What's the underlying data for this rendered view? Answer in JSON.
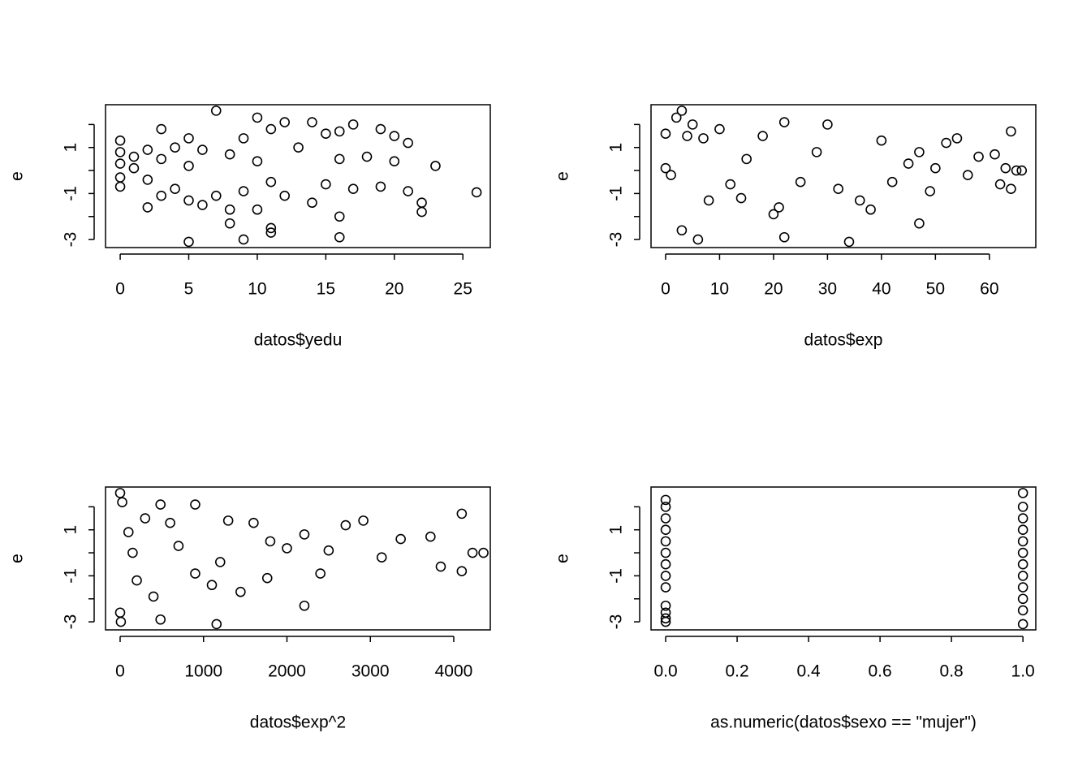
{
  "chart_data": [
    {
      "type": "scatter",
      "xlabel": "datos$yedu",
      "ylabel": "e",
      "color": "#000000",
      "xlim": [
        -1.07,
        27.0
      ],
      "ylim": [
        -3.35,
        2.86
      ],
      "xticks": [
        0,
        5,
        10,
        15,
        20,
        25
      ],
      "yticks": [
        -3,
        -2,
        -1,
        0,
        1,
        2
      ],
      "x": [
        0,
        0,
        0,
        0,
        0,
        1,
        1,
        2,
        2,
        2,
        3,
        3,
        3,
        4,
        4,
        5,
        5,
        5,
        5,
        6,
        6,
        7,
        7,
        8,
        8,
        8,
        9,
        9,
        9,
        10,
        10,
        10,
        11,
        11,
        11,
        11,
        12,
        12,
        13,
        14,
        14,
        15,
        15,
        16,
        16,
        16,
        16,
        17,
        17,
        18,
        19,
        19,
        20,
        20,
        21,
        21,
        22,
        22,
        23,
        26
      ],
      "y": [
        1.3,
        0.8,
        0.3,
        -0.3,
        -0.7,
        0.6,
        0.1,
        -1.6,
        0.9,
        -0.4,
        1.8,
        -1.1,
        0.5,
        1.0,
        -0.8,
        -3.1,
        1.4,
        -1.3,
        0.2,
        -1.5,
        0.9,
        2.6,
        -1.1,
        -2.3,
        -1.7,
        0.7,
        -3.0,
        1.4,
        -0.9,
        2.3,
        -1.7,
        0.4,
        -2.5,
        -2.7,
        1.8,
        -0.5,
        2.1,
        -1.1,
        1.0,
        2.1,
        -1.4,
        1.6,
        -0.6,
        -2.0,
        -2.9,
        1.7,
        0.5,
        2.0,
        -0.8,
        0.6,
        1.8,
        -0.7,
        1.5,
        0.4,
        1.2,
        -0.9,
        -1.4,
        -1.8,
        0.2,
        -0.95
      ]
    },
    {
      "type": "scatter",
      "xlabel": "datos$exp",
      "ylabel": "e",
      "color": "#000000",
      "xlim": [
        -2.7,
        68.6
      ],
      "ylim": [
        -3.35,
        2.86
      ],
      "xticks": [
        0,
        10,
        20,
        30,
        40,
        50,
        60
      ],
      "yticks": [
        -3,
        -2,
        -1,
        0,
        1,
        2
      ],
      "x": [
        0,
        0,
        1,
        2,
        3,
        3,
        4,
        5,
        6,
        7,
        8,
        10,
        12,
        14,
        15,
        18,
        20,
        21,
        22,
        22,
        25,
        28,
        30,
        32,
        34,
        36,
        38,
        40,
        42,
        45,
        47,
        47,
        49,
        50,
        52,
        54,
        56,
        58,
        61,
        62,
        63,
        64,
        64,
        65,
        66
      ],
      "y": [
        0.1,
        1.6,
        -0.2,
        2.3,
        2.6,
        -2.6,
        1.5,
        2.0,
        -3.0,
        1.4,
        -1.3,
        1.8,
        -0.6,
        -1.2,
        0.5,
        1.5,
        -1.9,
        -1.6,
        2.1,
        -2.9,
        -0.5,
        0.8,
        2.0,
        -0.8,
        -3.1,
        -1.3,
        -1.7,
        1.3,
        -0.5,
        0.3,
        -2.3,
        0.8,
        -0.9,
        0.1,
        1.2,
        1.4,
        -0.2,
        0.6,
        0.7,
        -0.6,
        0.1,
        1.7,
        -0.8,
        0,
        0
      ]
    },
    {
      "type": "scatter",
      "xlabel": "datos$exp^2",
      "ylabel": "e",
      "color": "#000000",
      "xlim": [
        -175,
        4438
      ],
      "ylim": [
        -3.35,
        2.86
      ],
      "xticks": [
        0,
        1000,
        2000,
        3000,
        4000
      ],
      "yticks": [
        -3,
        -2,
        -1,
        0,
        1,
        2
      ],
      "x": [
        0,
        0,
        9,
        25,
        100,
        200,
        300,
        400,
        484,
        484,
        600,
        900,
        900,
        1100,
        1156,
        1296,
        1444,
        1600,
        1764,
        2000,
        2209,
        2209,
        2401,
        2500,
        2704,
        2916,
        3136,
        3364,
        3721,
        3844,
        4096,
        4096,
        4225,
        4356,
        150,
        700,
        1200,
        1800
      ],
      "y": [
        2.6,
        -2.6,
        -3.0,
        2.2,
        0.9,
        -1.2,
        1.5,
        -1.9,
        -2.9,
        2.1,
        1.3,
        2.1,
        -0.9,
        -1.4,
        -3.1,
        1.4,
        -1.7,
        1.3,
        -1.1,
        0.2,
        -2.3,
        0.8,
        -0.9,
        0.1,
        1.2,
        1.4,
        -0.2,
        0.6,
        0.7,
        -0.6,
        1.7,
        -0.8,
        0,
        0,
        0,
        0.3,
        -0.4,
        0.5
      ]
    },
    {
      "type": "scatter",
      "xlabel": "as.numeric(datos$sexo == \"mujer\")",
      "ylabel": "e",
      "color": "#000000",
      "xlim": [
        -0.041,
        1.036
      ],
      "ylim": [
        -3.35,
        2.86
      ],
      "xticks": [
        {
          "value": 0,
          "label": "0.0"
        },
        {
          "value": 0.2,
          "label": "0.2"
        },
        {
          "value": 0.4,
          "label": "0.4"
        },
        {
          "value": 0.6,
          "label": "0.6"
        },
        {
          "value": 0.8,
          "label": "0.8"
        },
        {
          "value": 1,
          "label": "1.0"
        }
      ],
      "yticks": [
        -3,
        -2,
        -1,
        0,
        1,
        2
      ],
      "x": [
        0,
        0,
        0,
        0,
        0,
        0,
        0,
        0,
        0,
        0,
        0,
        0,
        0,
        1,
        1,
        1,
        1,
        1,
        1,
        1,
        1,
        1,
        1,
        1,
        1
      ],
      "y": [
        2.3,
        2.0,
        1.5,
        1.0,
        0.5,
        0,
        -0.5,
        -1.0,
        -1.5,
        -2.3,
        -2.6,
        -3.0,
        -2.85,
        2.6,
        2.0,
        1.5,
        1.0,
        0.5,
        0,
        -0.5,
        -1.0,
        -1.5,
        -2.0,
        -2.5,
        -3.1
      ]
    }
  ]
}
